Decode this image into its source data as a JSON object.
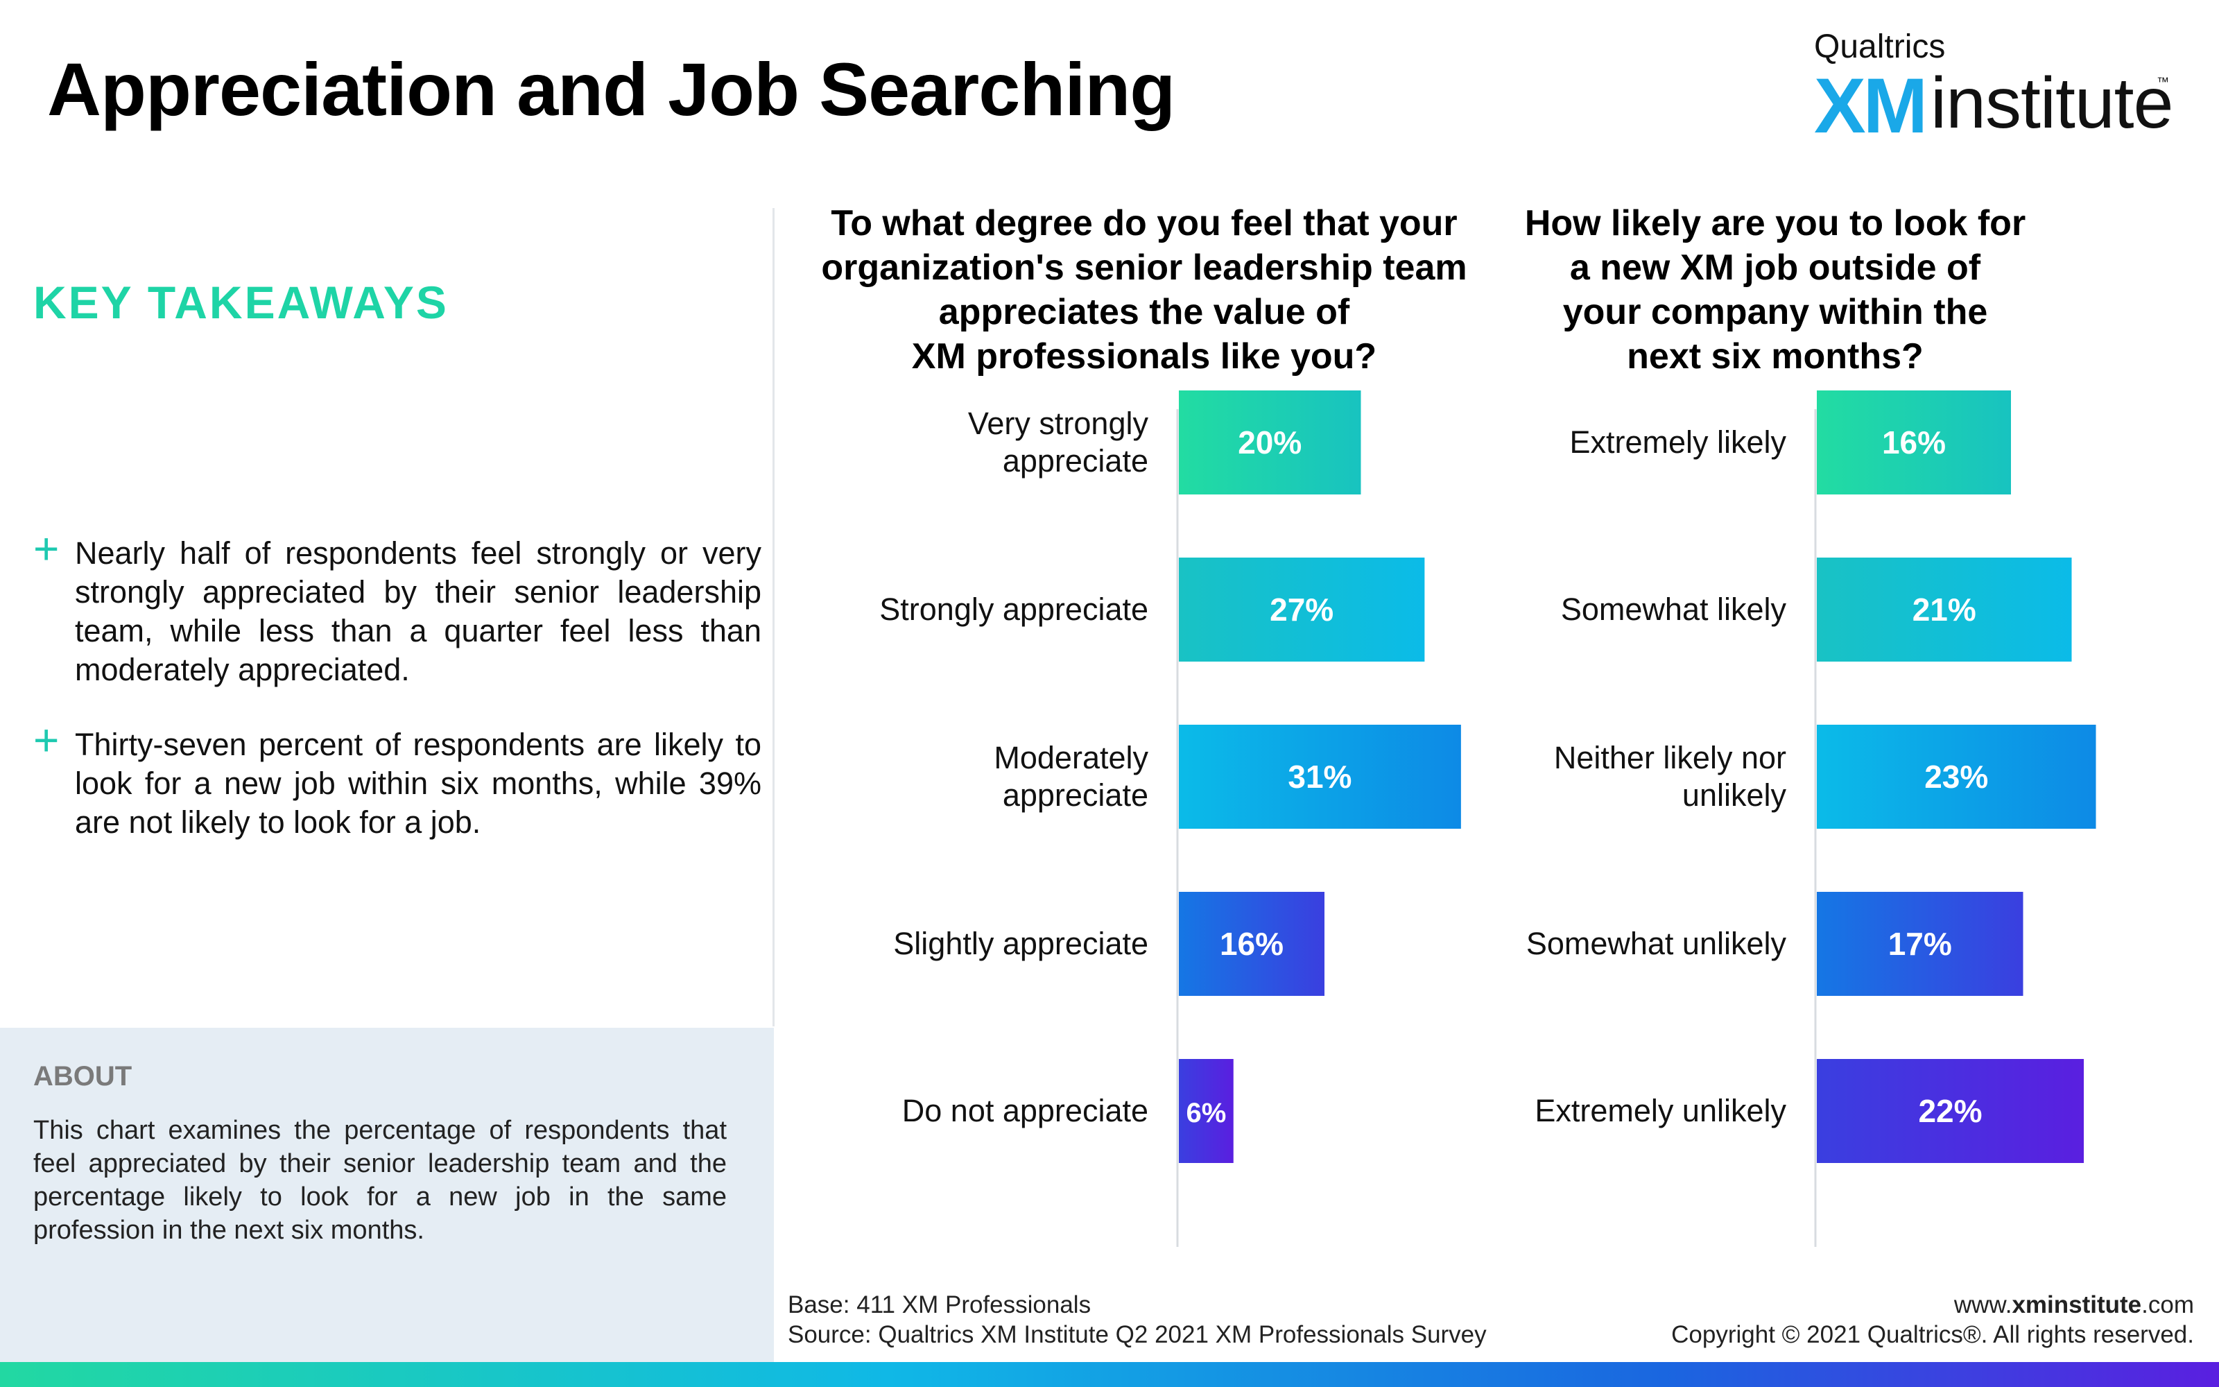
{
  "header": {
    "title": "Appreciation and Job Searching",
    "logo_brand": "Qualtrics",
    "logo_xm": "XM",
    "logo_institute": "institute",
    "logo_tm": "™"
  },
  "takeaways": {
    "heading": "KEY TAKEAWAYS",
    "items": [
      {
        "marker": "+",
        "text": "Nearly half of respondents feel strongly or very strongly appreciated by their senior leadership team, while less than a quarter feel less than moderately appreciated."
      },
      {
        "marker": "+",
        "text": "Thirty-seven percent of respondents are likely to look for a new job within six months, while 39% are not likely to look for a job."
      }
    ]
  },
  "about": {
    "heading": "ABOUT",
    "text": "This chart examines the percentage of respondents that feel appreciated by their senior leadership team and the percentage likely to look for a new job in the same profession in the next six months."
  },
  "footer": {
    "base": "Base: 411 XM Professionals",
    "source": "Source: Qualtrics XM Institute Q2 2021 XM Professionals Survey",
    "website_prefix": "www.",
    "website_bold": "xminstitute",
    "website_suffix": ".com",
    "copyright": "Copyright © 2021 Qualtrics®. All rights reserved."
  },
  "colors": {
    "accent_green": "#1ed4a6",
    "bar_gradients": [
      [
        "#22dca2",
        "#18c3c0"
      ],
      [
        "#19c2c4",
        "#0bbbe8"
      ],
      [
        "#0bbbe8",
        "#0d8ae6"
      ],
      [
        "#1577e4",
        "#3a3fe0"
      ],
      [
        "#3a3fe0",
        "#5a1fe0"
      ]
    ]
  },
  "chart_data": [
    {
      "type": "bar",
      "orientation": "horizontal",
      "title": "To what degree do you feel that your organization's senior leadership team appreciates the value of XM professionals like you?",
      "title_lines": [
        "To what degree do you feel that your",
        "organization's senior leadership team",
        "appreciates the value of",
        "XM professionals like you?"
      ],
      "categories": [
        "Very strongly appreciate",
        "Strongly appreciate",
        "Moderately appreciate",
        "Slightly appreciate",
        "Do not appreciate"
      ],
      "category_lines": [
        [
          "Very strongly",
          "appreciate"
        ],
        [
          "Strongly appreciate"
        ],
        [
          "Moderately",
          "appreciate"
        ],
        [
          "Slightly appreciate"
        ],
        [
          "Do not appreciate"
        ]
      ],
      "values": [
        20,
        27,
        31,
        16,
        6
      ],
      "data_labels": [
        "20%",
        "27%",
        "31%",
        "16%",
        "6%"
      ],
      "unit": "%",
      "xlim": [
        0,
        32
      ]
    },
    {
      "type": "bar",
      "orientation": "horizontal",
      "title": "How likely are you to look for a new XM job outside of your company within the next six months?",
      "title_lines": [
        "How likely are you to look for",
        "a new XM job outside of",
        "your company within the",
        "next six months?"
      ],
      "categories": [
        "Extremely likely",
        "Somewhat likely",
        "Neither likely nor unlikely",
        "Somewhat unlikely",
        "Extremely unlikely"
      ],
      "category_lines": [
        [
          "Extremely likely"
        ],
        [
          "Somewhat likely"
        ],
        [
          "Neither likely nor",
          "unlikely"
        ],
        [
          "Somewhat unlikely"
        ],
        [
          "Extremely unlikely"
        ]
      ],
      "values": [
        16,
        21,
        23,
        17,
        22
      ],
      "data_labels": [
        "16%",
        "21%",
        "23%",
        "17%",
        "22%"
      ],
      "unit": "%",
      "xlim": [
        0,
        24
      ]
    }
  ]
}
